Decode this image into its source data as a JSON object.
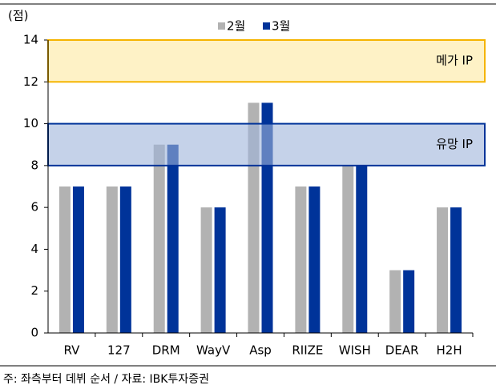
{
  "chart_data": {
    "type": "bar",
    "y_label": "(점)",
    "categories": [
      "RV",
      "127",
      "DRM",
      "WayV",
      "Asp",
      "RIIZE",
      "WISH",
      "DEAR",
      "H2H"
    ],
    "series": [
      {
        "name": "2월",
        "color": "#b2b2b2",
        "values": [
          7,
          7,
          9,
          6,
          11,
          7,
          8,
          3,
          6
        ]
      },
      {
        "name": "3월",
        "color": "#003399",
        "values": [
          7,
          7,
          9,
          6,
          11,
          7,
          8,
          3,
          6
        ]
      }
    ],
    "bands": [
      {
        "label": "메가 IP",
        "from": 12,
        "to": 14,
        "color": "#fde9a0",
        "border": "#f5b400"
      },
      {
        "label": "유망 IP",
        "from": 8,
        "to": 10,
        "color": "#9fb4da",
        "border": "#003399"
      }
    ],
    "ylim": [
      0,
      14
    ],
    "yticks": [
      0,
      2,
      4,
      6,
      8,
      10,
      12,
      14
    ],
    "legend": "top",
    "footnote": "주: 좌측부터 데뷔 순서 / 자료: IBK투자증권"
  }
}
